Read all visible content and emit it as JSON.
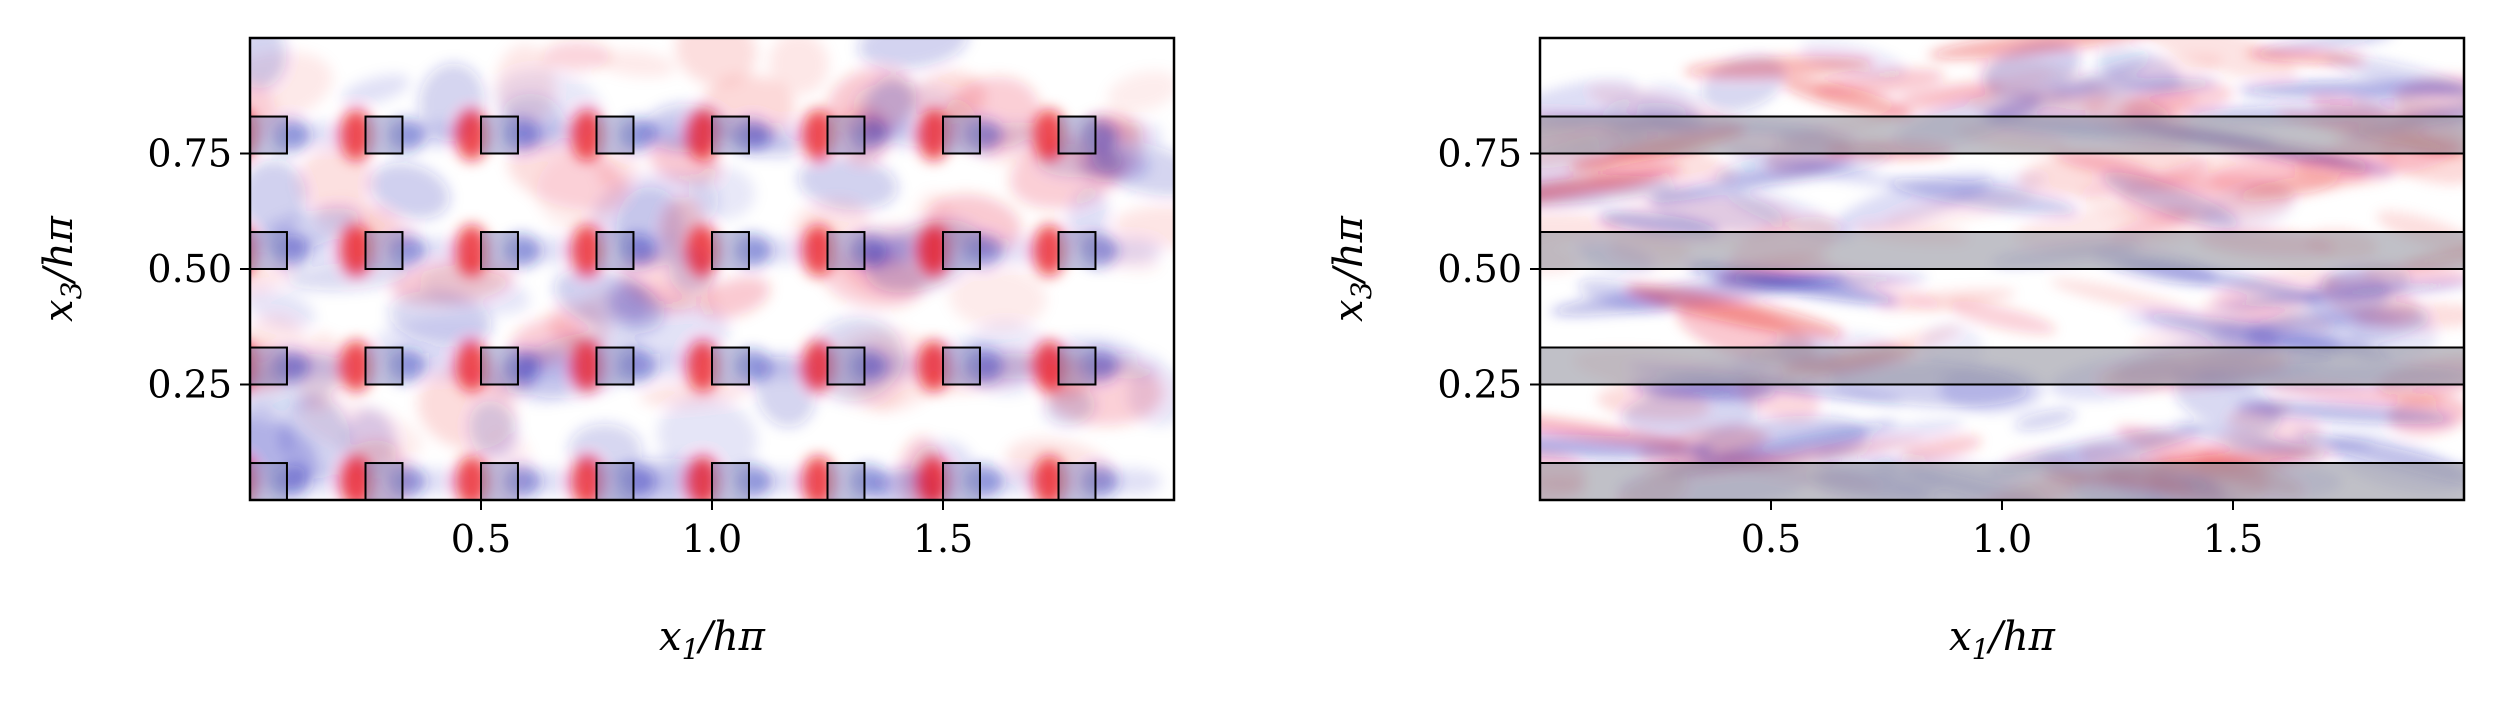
{
  "figure": {
    "panels": [
      {
        "id": "cube-array",
        "xlabel": "x₁/hπ",
        "ylabel": "x₃/hπ"
      },
      {
        "id": "spanwise-bars",
        "xlabel": "x₁/hπ",
        "ylabel": "x₃/hπ"
      }
    ]
  },
  "chart_data": [
    {
      "type": "heatmap",
      "title": "",
      "xlabel": "x₁/hπ",
      "ylabel": "x₃/hπ",
      "xlim": [
        0,
        2
      ],
      "ylim": [
        0,
        1
      ],
      "xticks": [
        0.5,
        1.0,
        1.5
      ],
      "xtick_labels": [
        "0.5",
        "1.0",
        "1.5"
      ],
      "yticks": [
        0.25,
        0.5,
        0.75
      ],
      "ytick_labels": [
        "0.25",
        "0.50",
        "0.75"
      ],
      "colormap": "bwr",
      "colors": {
        "positive": "#e8121e",
        "negative": "#1d1fb4",
        "zero": "#ffffff"
      },
      "grid": false,
      "obstacles": {
        "shape": "square",
        "size": 0.08,
        "x_left": [
          0.0,
          0.25,
          0.5,
          0.75,
          1.0,
          1.25,
          1.5,
          1.75
        ],
        "z_bottom": [
          0.0,
          0.25,
          0.5,
          0.75
        ]
      }
    },
    {
      "type": "heatmap",
      "title": "",
      "xlabel": "x₁/hπ",
      "ylabel": "x₃/hπ",
      "xlim": [
        0,
        2
      ],
      "ylim": [
        0,
        1
      ],
      "xticks": [
        0.5,
        1.0,
        1.5
      ],
      "xtick_labels": [
        "0.5",
        "1.0",
        "1.5"
      ],
      "yticks": [
        0.25,
        0.5,
        0.75
      ],
      "ytick_labels": [
        "0.25",
        "0.50",
        "0.75"
      ],
      "colormap": "bwr",
      "colors": {
        "positive": "#e8121e",
        "negative": "#1d1fb4",
        "zero": "#ffffff"
      },
      "grid": false,
      "obstacles": {
        "shape": "spanwise-strip",
        "width": 0.08,
        "z_bottom": [
          0.0,
          0.25,
          0.5,
          0.75
        ]
      }
    }
  ]
}
